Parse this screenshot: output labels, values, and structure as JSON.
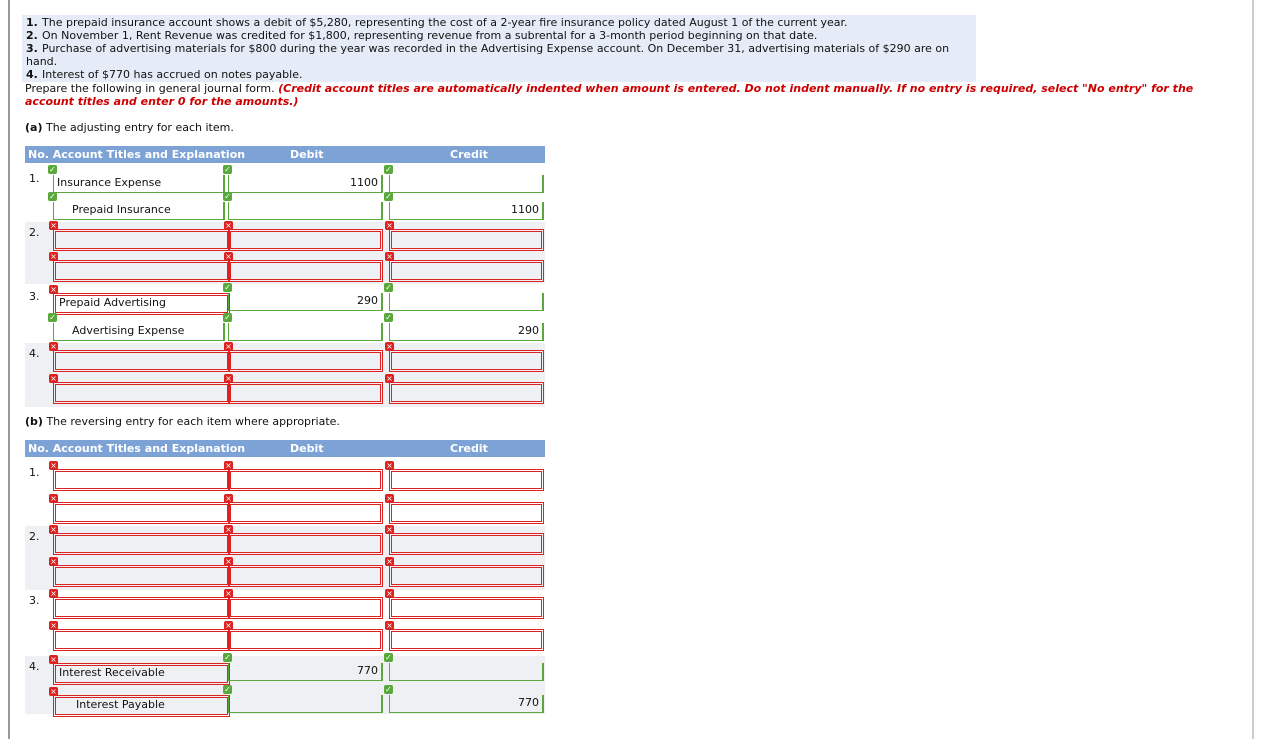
{
  "problem": {
    "items": [
      {
        "no": "1.",
        "text": "The prepaid insurance account shows a debit of $5,280, representing the cost of a 2-year fire insurance policy dated August 1 of the current year."
      },
      {
        "no": "2.",
        "text": "On November 1, Rent Revenue was credited for $1,800, representing revenue from a subrental for a 3-month period beginning on that date."
      },
      {
        "no": "3.",
        "text": "Purchase of advertising materials for $800 during the year was recorded in the Advertising Expense account. On December 31, advertising materials of $290 are on hand."
      },
      {
        "no": "4.",
        "text": "Interest of $770 has accrued on notes payable."
      }
    ],
    "instruction": "Prepare the following in general journal form.",
    "note": "(Credit account titles are automatically indented when amount is entered. Do not indent manually. If no entry is required, select \"No entry\" for the account titles and enter 0 for the amounts.)"
  },
  "part_a": {
    "label": "(a)",
    "prompt": "The adjusting entry for each item.",
    "headers": {
      "account": "No. Account Titles and Explanation",
      "debit": "Debit",
      "credit": "Credit"
    },
    "rows": [
      {
        "no": "1.",
        "account": "Insurance Expense",
        "debit": 1100
      },
      {
        "account": "Prepaid Insurance",
        "credit": 1100
      },
      {
        "no": "2."
      },
      {},
      {
        "no": "3.",
        "account": "Prepaid Advertising",
        "debit": 290
      },
      {
        "account": "Advertising Expense",
        "credit": 290
      },
      {
        "no": "4."
      },
      {}
    ]
  },
  "part_b": {
    "label": "(b)",
    "prompt": "The reversing entry for each item where appropriate.",
    "headers": {
      "account": "No. Account Titles and Explanation",
      "debit": "Debit",
      "credit": "Credit"
    },
    "rows": [
      {
        "no": "1."
      },
      {},
      {
        "no": "2."
      },
      {},
      {
        "no": "3."
      },
      {},
      {
        "no": "4.",
        "account": "Interest Receivable",
        "debit": 770
      },
      {
        "account": "Interest Payable",
        "credit": 770
      }
    ]
  }
}
